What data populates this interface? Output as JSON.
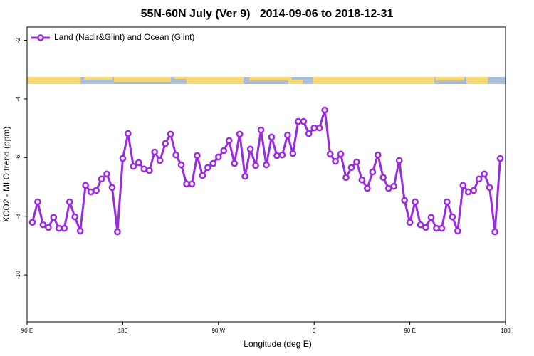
{
  "chart_data": {
    "type": "line",
    "title": "55N-60N July (Ver 9)   2014-09-06 to 2018-12-31",
    "xlabel": "Longitude (deg E)",
    "ylabel": "XCO2 - MLO trend (ppm)",
    "xlim": [
      90,
      540
    ],
    "ylim": [
      -11.6,
      -1.55
    ],
    "xticks": [
      {
        "value": 90,
        "label": "90 E"
      },
      180,
      {
        "value": 270,
        "label": "90 W"
      },
      {
        "value": 360,
        "label": "0"
      },
      {
        "value": 450,
        "label": "90 E"
      },
      {
        "value": 540,
        "label": "180"
      }
    ],
    "yticks": [
      -10,
      -8,
      -6,
      -4,
      -2
    ],
    "legend": "upper left",
    "x": [
      95,
      100,
      105,
      110,
      115,
      120,
      125,
      130,
      135,
      140,
      145,
      150,
      155,
      160,
      165,
      170,
      175,
      180,
      185,
      190,
      195,
      200,
      205,
      210,
      215,
      220,
      225,
      230,
      235,
      240,
      245,
      250,
      255,
      260,
      265,
      270,
      275,
      280,
      285,
      290,
      295,
      300,
      305,
      310,
      315,
      320,
      325,
      330,
      335,
      340,
      345,
      350,
      355,
      360,
      365,
      370,
      375,
      380,
      385,
      390,
      395,
      400,
      405,
      410,
      415,
      420,
      425,
      430,
      435,
      440,
      445,
      450,
      455,
      460,
      465,
      470,
      475,
      480,
      485,
      490,
      495,
      500,
      505,
      510,
      515,
      520,
      525,
      530,
      535
    ],
    "series": [
      {
        "name": "Land (Nadir&Glint) and Ocean (Glint)",
        "color": "#9b2be0",
        "values": [
          -8.21,
          -7.51,
          -8.29,
          -8.38,
          -8.04,
          -8.41,
          -8.41,
          -7.51,
          -8.02,
          -8.5,
          -6.95,
          -7.17,
          -7.12,
          -6.73,
          -6.56,
          -7.02,
          -8.53,
          -6.03,
          -5.18,
          -6.3,
          -6.17,
          -6.39,
          -6.44,
          -5.81,
          -6.1,
          -5.52,
          -5.2,
          -5.91,
          -6.25,
          -6.9,
          -6.9,
          -5.93,
          -6.61,
          -6.34,
          -6.2,
          -5.98,
          -5.76,
          -5.42,
          -6.2,
          -5.2,
          -6.64,
          -5.71,
          -6.27,
          -5.06,
          -6.25,
          -5.3,
          -5.93,
          -5.91,
          -5.23,
          -5.86,
          -4.77,
          -4.77,
          -5.18,
          -4.99,
          -4.99,
          -4.38,
          -5.88,
          -6.13,
          -5.88,
          -6.68,
          -6.34,
          -6.15,
          -6.76,
          -7.05,
          -6.49,
          -5.91,
          -6.68,
          -7.05,
          -6.98,
          -6.1,
          -7.46,
          -8.21,
          -7.51,
          -8.29,
          -8.38,
          -8.04,
          -8.41,
          -8.41,
          -7.51,
          -8.02,
          -8.5,
          -6.95,
          -7.17,
          -7.12,
          -6.73,
          -6.56,
          -7.02,
          -8.53,
          -6.03
        ]
      }
    ]
  }
}
